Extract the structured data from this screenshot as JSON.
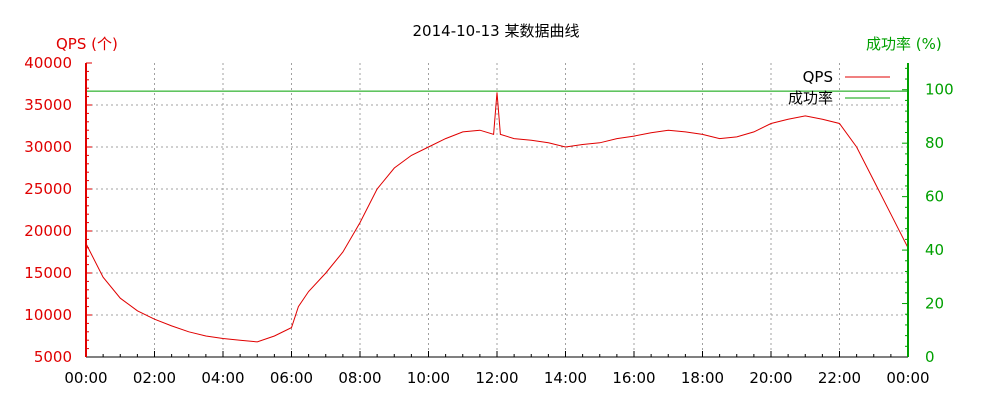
{
  "chart_data": {
    "type": "line",
    "title": "2014-10-13 某数据曲线",
    "ylabel_left": "QPS (个)",
    "ylabel_right": "成功率 (%)",
    "x_ticks": [
      "00:00",
      "02:00",
      "04:00",
      "06:00",
      "08:00",
      "10:00",
      "12:00",
      "14:00",
      "16:00",
      "18:00",
      "20:00",
      "22:00",
      "00:00"
    ],
    "x_range_hours": [
      0,
      24
    ],
    "y_left_range": [
      5000,
      40000
    ],
    "y_left_ticks": [
      "5000",
      "10000",
      "15000",
      "20000",
      "25000",
      "30000",
      "35000",
      "40000"
    ],
    "y_right_range": [
      0,
      110
    ],
    "y_right_ticks": [
      "0",
      "20",
      "40",
      "60",
      "80",
      "100"
    ],
    "grid": true,
    "legend_position": "top-right",
    "colors": {
      "qps": "#e00000",
      "success": "#00a000"
    },
    "series": [
      {
        "name": "QPS",
        "axis": "left",
        "x": [
          0,
          0.5,
          1,
          1.5,
          2,
          2.5,
          3,
          3.5,
          4,
          4.5,
          5,
          5.5,
          6,
          6.2,
          6.5,
          7,
          7.5,
          8,
          8.5,
          9,
          9.5,
          10,
          10.5,
          11,
          11.5,
          11.9,
          12,
          12.1,
          12.5,
          13,
          13.5,
          14,
          14.5,
          15,
          15.5,
          16,
          16.5,
          17,
          17.5,
          18,
          18.5,
          19,
          19.5,
          20,
          20.5,
          21,
          21.5,
          22,
          22.5,
          23,
          23.5,
          24
        ],
        "values": [
          18500,
          14500,
          12000,
          10500,
          9500,
          8700,
          8000,
          7500,
          7200,
          7000,
          6800,
          7500,
          8500,
          11000,
          12800,
          15000,
          17500,
          21000,
          25000,
          27500,
          29000,
          30000,
          31000,
          31800,
          32000,
          31500,
          36500,
          31500,
          31000,
          30800,
          30500,
          30000,
          30300,
          30500,
          31000,
          31300,
          31700,
          32000,
          31800,
          31500,
          31000,
          31200,
          31800,
          32800,
          33300,
          33700,
          33300,
          32800,
          30000,
          26000,
          22000,
          18000
        ]
      },
      {
        "name": "成功率",
        "axis": "right",
        "x": [
          0,
          4,
          8,
          12,
          16,
          20,
          24
        ],
        "values": [
          99.5,
          99.5,
          99.5,
          99.5,
          99.5,
          99.5,
          99.5
        ]
      }
    ]
  }
}
